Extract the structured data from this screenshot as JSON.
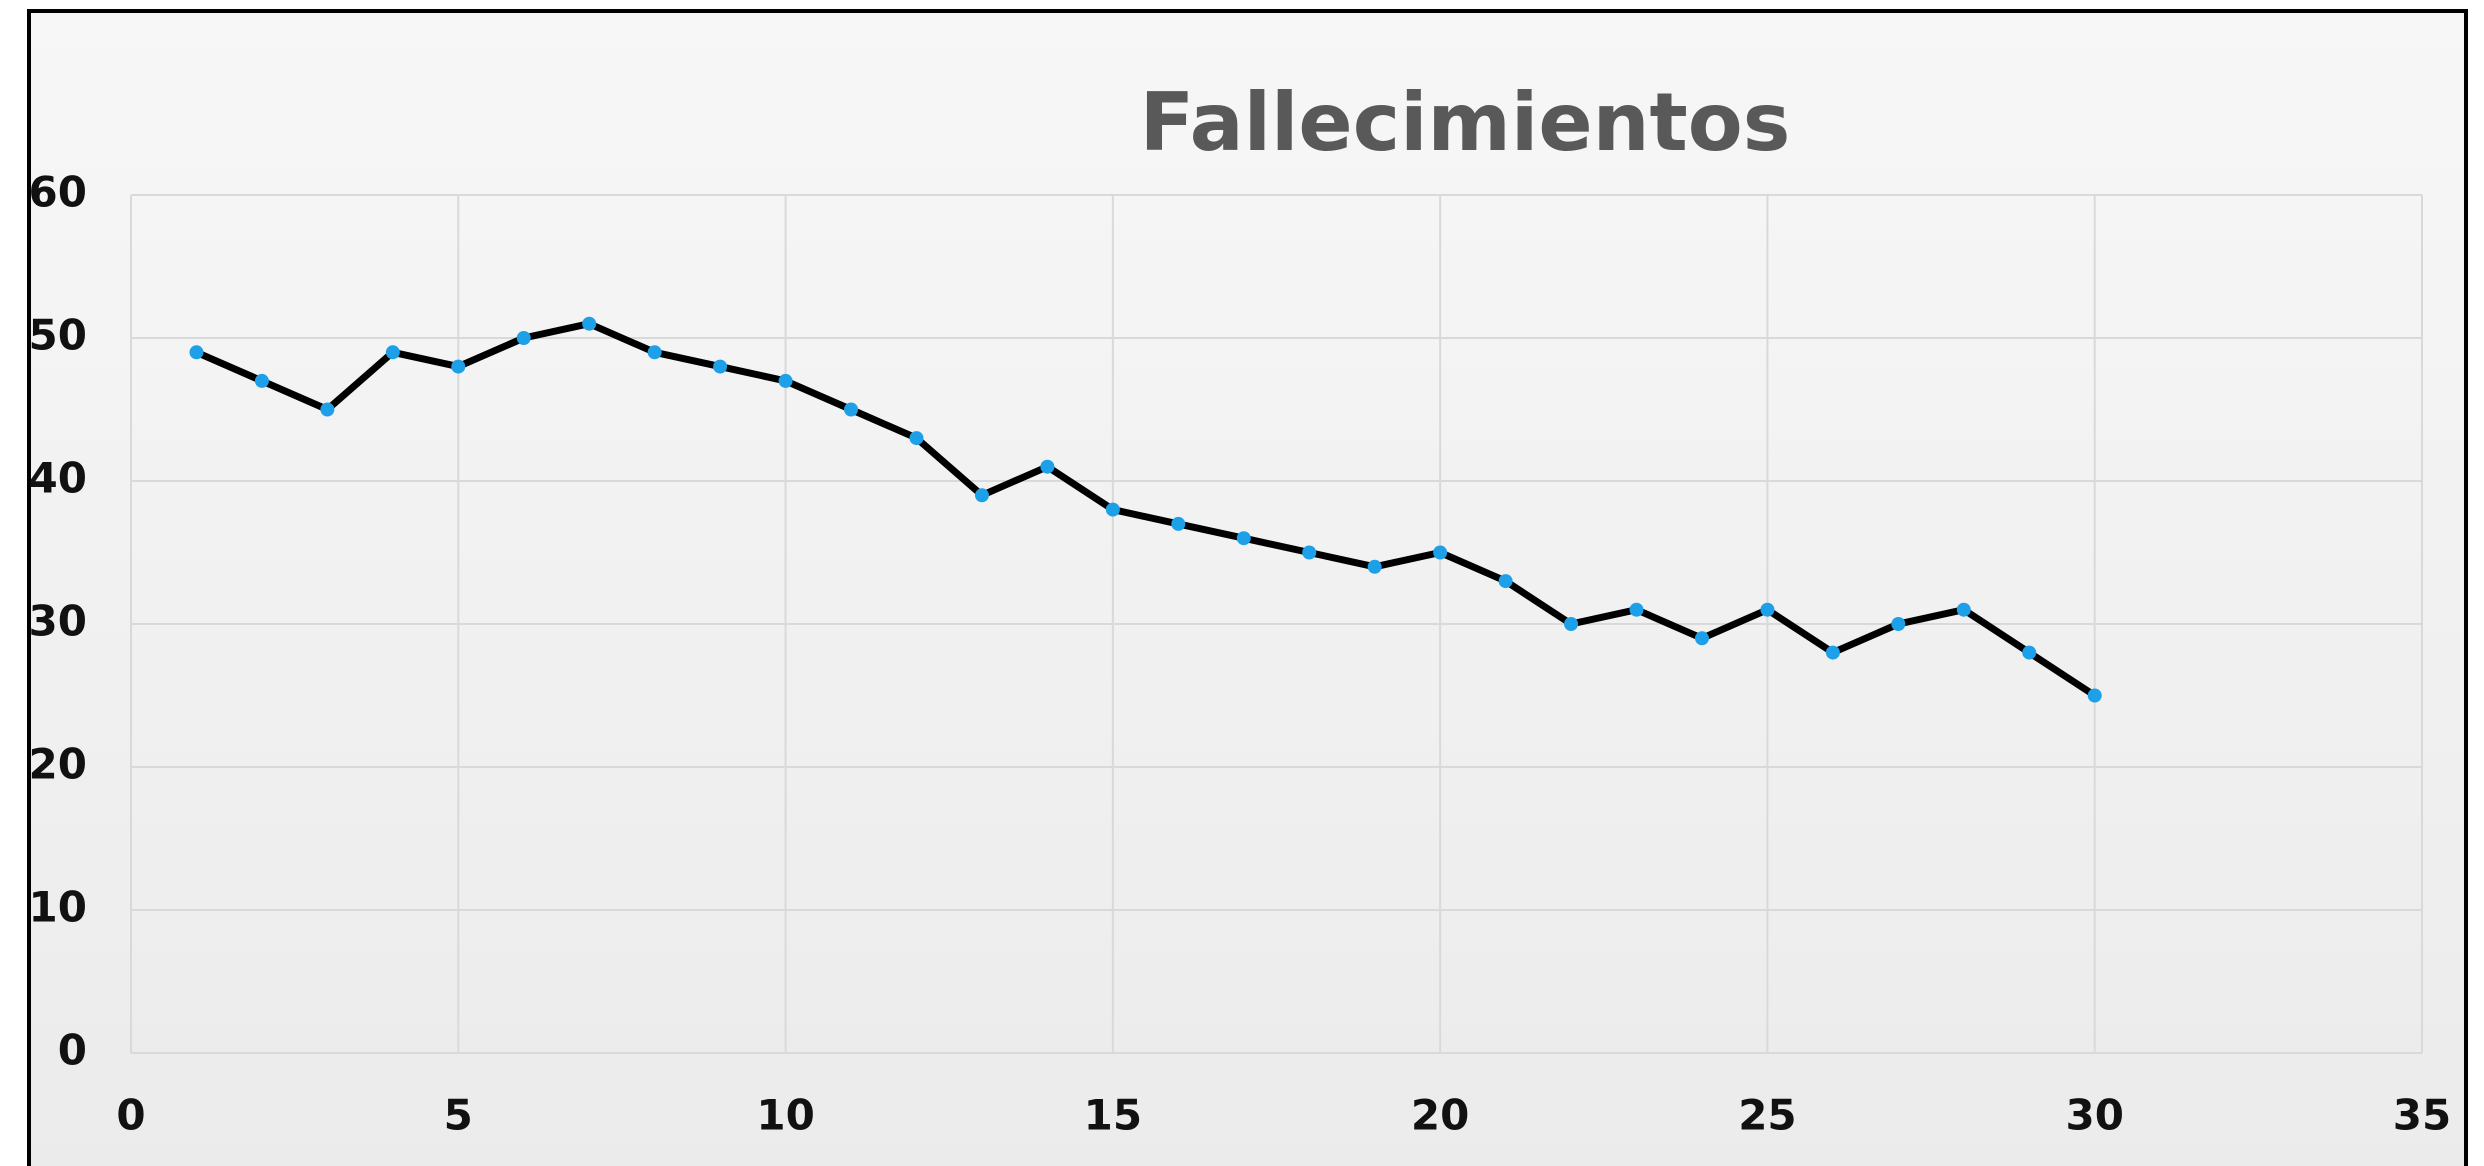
{
  "chart_data": {
    "type": "line",
    "title": "Fallecimientos",
    "x": [
      1,
      2,
      3,
      4,
      5,
      6,
      7,
      8,
      9,
      10,
      11,
      12,
      13,
      14,
      15,
      16,
      17,
      18,
      19,
      20,
      21,
      22,
      23,
      24,
      25,
      26,
      27,
      28,
      29,
      30
    ],
    "series": [
      {
        "color": "#000000",
        "marker_color": "#1ea0e8",
        "values": [
          49,
          47,
          45,
          49,
          48,
          50,
          51,
          49,
          48,
          47,
          45,
          43,
          39,
          41,
          38,
          37,
          36,
          35,
          34,
          35,
          33,
          30,
          31,
          29,
          31,
          28,
          30,
          31,
          28,
          25
        ]
      }
    ],
    "xlim": [
      0,
      35
    ],
    "xticks": [
      0,
      5,
      10,
      15,
      20,
      25,
      30,
      35
    ],
    "ylim": [
      0,
      60
    ],
    "yticks": [
      0,
      10,
      20,
      30,
      40,
      50,
      60
    ],
    "grid": true
  }
}
